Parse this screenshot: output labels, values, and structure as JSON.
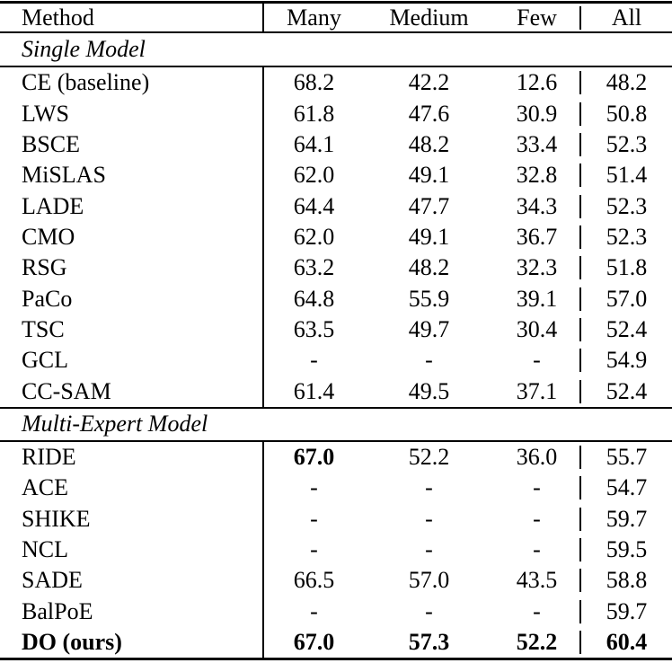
{
  "table": {
    "header": {
      "method": "Method",
      "many": "Many",
      "medium": "Medium",
      "few": "Few",
      "all": "All"
    },
    "sections": [
      {
        "label": "Single Model",
        "rows": [
          {
            "method": "CE (baseline)",
            "many": "68.2",
            "medium": "42.2",
            "few": "12.6",
            "all": "48.2"
          },
          {
            "method": "LWS",
            "many": "61.8",
            "medium": "47.6",
            "few": "30.9",
            "all": "50.8"
          },
          {
            "method": "BSCE",
            "many": "64.1",
            "medium": "48.2",
            "few": "33.4",
            "all": "52.3"
          },
          {
            "method": "MiSLAS",
            "many": "62.0",
            "medium": "49.1",
            "few": "32.8",
            "all": "51.4"
          },
          {
            "method": "LADE",
            "many": "64.4",
            "medium": "47.7",
            "few": "34.3",
            "all": "52.3"
          },
          {
            "method": "CMO",
            "many": "62.0",
            "medium": "49.1",
            "few": "36.7",
            "all": "52.3"
          },
          {
            "method": "RSG",
            "many": "63.2",
            "medium": "48.2",
            "few": "32.3",
            "all": "51.8"
          },
          {
            "method": "PaCo",
            "many": "64.8",
            "medium": "55.9",
            "few": "39.1",
            "all": "57.0"
          },
          {
            "method": "TSC",
            "many": "63.5",
            "medium": "49.7",
            "few": "30.4",
            "all": "52.4"
          },
          {
            "method": "GCL",
            "many": "-",
            "medium": "-",
            "few": "-",
            "all": "54.9"
          },
          {
            "method": "CC-SAM",
            "many": "61.4",
            "medium": "49.5",
            "few": "37.1",
            "all": "52.4"
          }
        ]
      },
      {
        "label": "Multi-Expert Model",
        "rows": [
          {
            "method": "RIDE",
            "many": "67.0",
            "medium": "52.2",
            "few": "36.0",
            "all": "55.7"
          },
          {
            "method": "ACE",
            "many": "-",
            "medium": "-",
            "few": "-",
            "all": "54.7"
          },
          {
            "method": "SHIKE",
            "many": "-",
            "medium": "-",
            "few": "-",
            "all": "59.7"
          },
          {
            "method": "NCL",
            "many": "-",
            "medium": "-",
            "few": "-",
            "all": "59.5"
          },
          {
            "method": "SADE",
            "many": "66.5",
            "medium": "57.0",
            "few": "43.5",
            "all": "58.8"
          },
          {
            "method": "BalPoE",
            "many": "-",
            "medium": "-",
            "few": "-",
            "all": "59.7"
          },
          {
            "method": "DO (ours)",
            "many": "67.0",
            "medium": "57.3",
            "few": "52.2",
            "all": "60.4"
          }
        ]
      }
    ]
  }
}
